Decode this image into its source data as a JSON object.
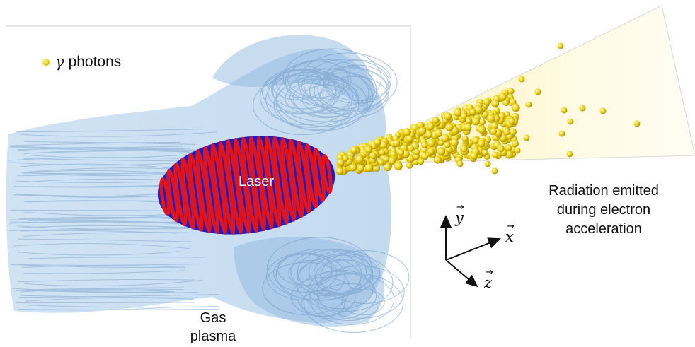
{
  "legend": {
    "symbol": "γ",
    "text": "photons",
    "icon": "yellow-sphere-icon"
  },
  "labels": {
    "laser": "Laser",
    "radiation": [
      "Radiation emitted",
      "during electron",
      "acceleration"
    ],
    "gas": [
      "Gas",
      "plasma"
    ]
  },
  "axes": {
    "x": "x",
    "y": "y",
    "z": "z"
  },
  "colors": {
    "plasma": "#6fa3d6",
    "laser_red": "#e0141c",
    "laser_blue": "#1a1ad0",
    "photon": "#e6cf12",
    "cone": "#fff4c4"
  }
}
